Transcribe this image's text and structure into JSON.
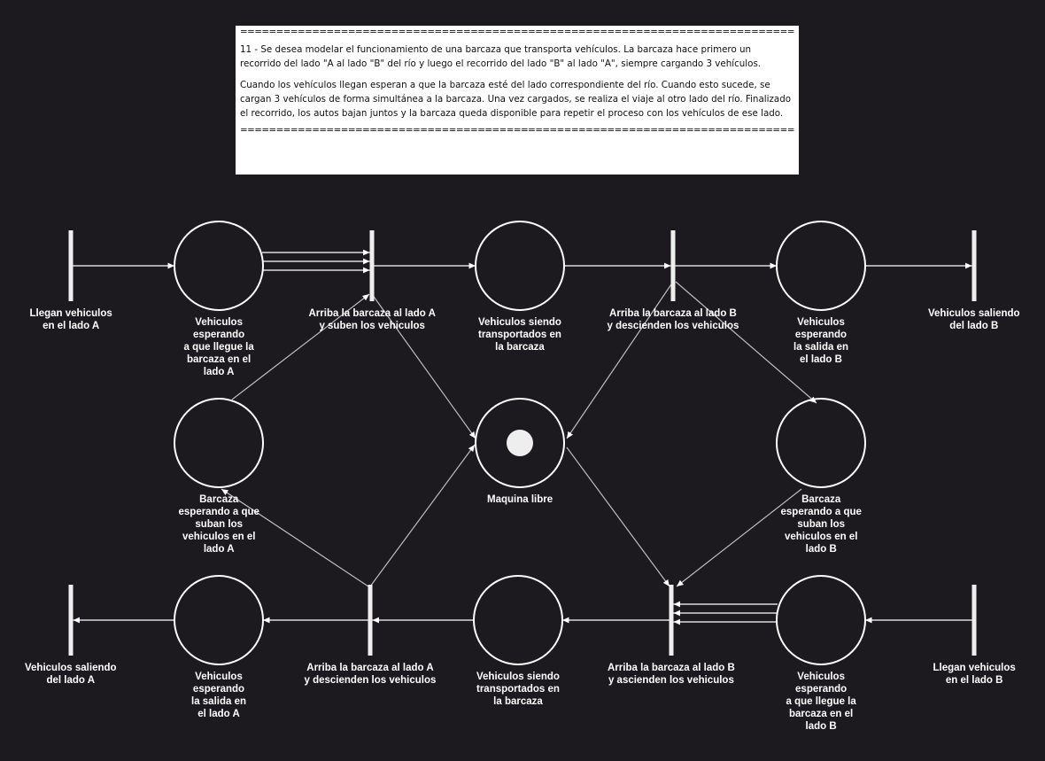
{
  "statement": {
    "separator": "=====================================================================================================================================",
    "paragraphs": [
      "11 - Se desea modelar el funcionamiento de una barcaza que transporta vehículos. La barcaza hace primero un recorrido del lado \"A al lado \"B\" del río y luego el recorrido del lado \"B\" al lado \"A\", siempre cargando 3 vehículos.",
      "Cuando los vehículos llegan esperan a que la barcaza esté del lado correspondiente del río. Cuando esto sucede, se cargan 3 vehículos de forma simultánea a la barcaza. Una vez cargados, se realiza el viaje al otro lado del río. Finalizado el recorrido, los autos bajan juntos y la barcaza queda disponible para repetir el proceso con los vehículos de ese lado."
    ]
  },
  "colors": {
    "background": "#1c1a1f",
    "stroke": "#ffffff",
    "edge": "#bdbdbd",
    "token": "#eeeeee"
  },
  "transitions": {
    "t_llegan_a": "Llegan vehiculos\nen el lado A",
    "t_arriba_a_suben": "Arriba la barcaza al lado A\ny suben los vehiculos",
    "t_arriba_b_descienden": "Arriba la barcaza al lado B\ny descienden los vehiculos",
    "t_saliendo_b": "Vehiculos saliendo\ndel lado B",
    "t_saliendo_a": "Vehiculos saliendo\ndel lado A",
    "t_arriba_a_descienden": "Arriba la barcaza al lado A\ny descienden los vehiculos",
    "t_arriba_b_ascienden": "Arriba la barcaza al lado B\ny ascienden los vehiculos",
    "t_llegan_b": "Llegan vehiculos\nen el lado B"
  },
  "places": {
    "p_esperando_a": {
      "label": "Vehiculos\nesperando\na que llegue la\nbarcaza en el\nlado A",
      "tokens": 0
    },
    "p_transportados_ab": {
      "label": "Vehiculos siendo\ntransportados en\nla barcaza",
      "tokens": 0
    },
    "p_salida_b": {
      "label": "Vehiculos\nesperando\nla salida en\nel lado B",
      "tokens": 0
    },
    "p_barcaza_a": {
      "label": "Barcaza\nesperando a que\nsuban los\nvehiculos en el\nlado A",
      "tokens": 0
    },
    "p_maquina_libre": {
      "label": "Maquina libre",
      "tokens": 1
    },
    "p_barcaza_b": {
      "label": "Barcaza\nesperando a que\nsuban los\nvehiculos en el\nlado B",
      "tokens": 0
    },
    "p_salida_a": {
      "label": "Vehiculos\nesperando\nla salida en\nel lado A",
      "tokens": 0
    },
    "p_transportados_ba": {
      "label": "Vehiculos siendo\ntransportados en\nla barcaza",
      "tokens": 0
    },
    "p_esperando_b": {
      "label": "Vehiculos\nesperando\na que llegue la\nbarcaza en el\nlado B",
      "tokens": 0
    }
  },
  "arc_weights": {
    "esperando_a_to_suben": 3,
    "esperando_b_to_ascienden": 3
  }
}
